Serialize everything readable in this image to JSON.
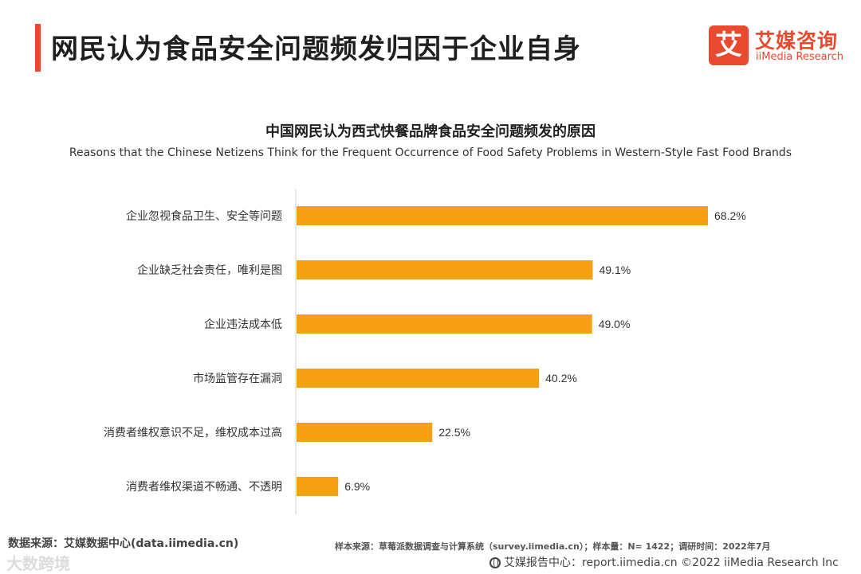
{
  "header": {
    "title": "网民认为食品安全问题频发归因于企业自身",
    "logo_mark": "艾",
    "logo_cn": "艾媒咨询",
    "logo_en": "iiMedia Research"
  },
  "colors": {
    "accent": "#e8492f",
    "bar": "#f7a013"
  },
  "chart_data": {
    "type": "bar",
    "orientation": "horizontal",
    "title": "中国网民认为西式快餐品牌食品安全问题频发的原因",
    "subtitle": "Reasons that the Chinese Netizens Think for the Frequent Occurrence of Food Safety Problems in Western-Style Fast Food Brands",
    "categories": [
      "企业忽视食品卫生、安全等问题",
      "企业缺乏社会责任，唯利是图",
      "企业违法成本低",
      "市场监管存在漏洞",
      "消费者维权意识不足，维权成本过高",
      "消费者维权渠道不畅通、不透明"
    ],
    "values": [
      68.2,
      49.1,
      49.0,
      40.2,
      22.5,
      6.9
    ],
    "value_labels": [
      "68.2%",
      "49.1%",
      "49.0%",
      "40.2%",
      "22.5%",
      "6.9%"
    ],
    "unit": "%",
    "xlim": [
      0,
      70
    ],
    "grid": false,
    "legend": "none"
  },
  "footer": {
    "source": "数据来源：艾媒数据中心(data.iimedia.cn)",
    "sample": "样本来源：草莓派数据调查与计算系统（survey.iimedia.cn）；样本量：N= 1422；调研时间：2022年7月",
    "report": "艾媒报告中心：report.iimedia.cn   ©2022  iiMedia Research  Inc",
    "watermark": "大数跨境"
  }
}
